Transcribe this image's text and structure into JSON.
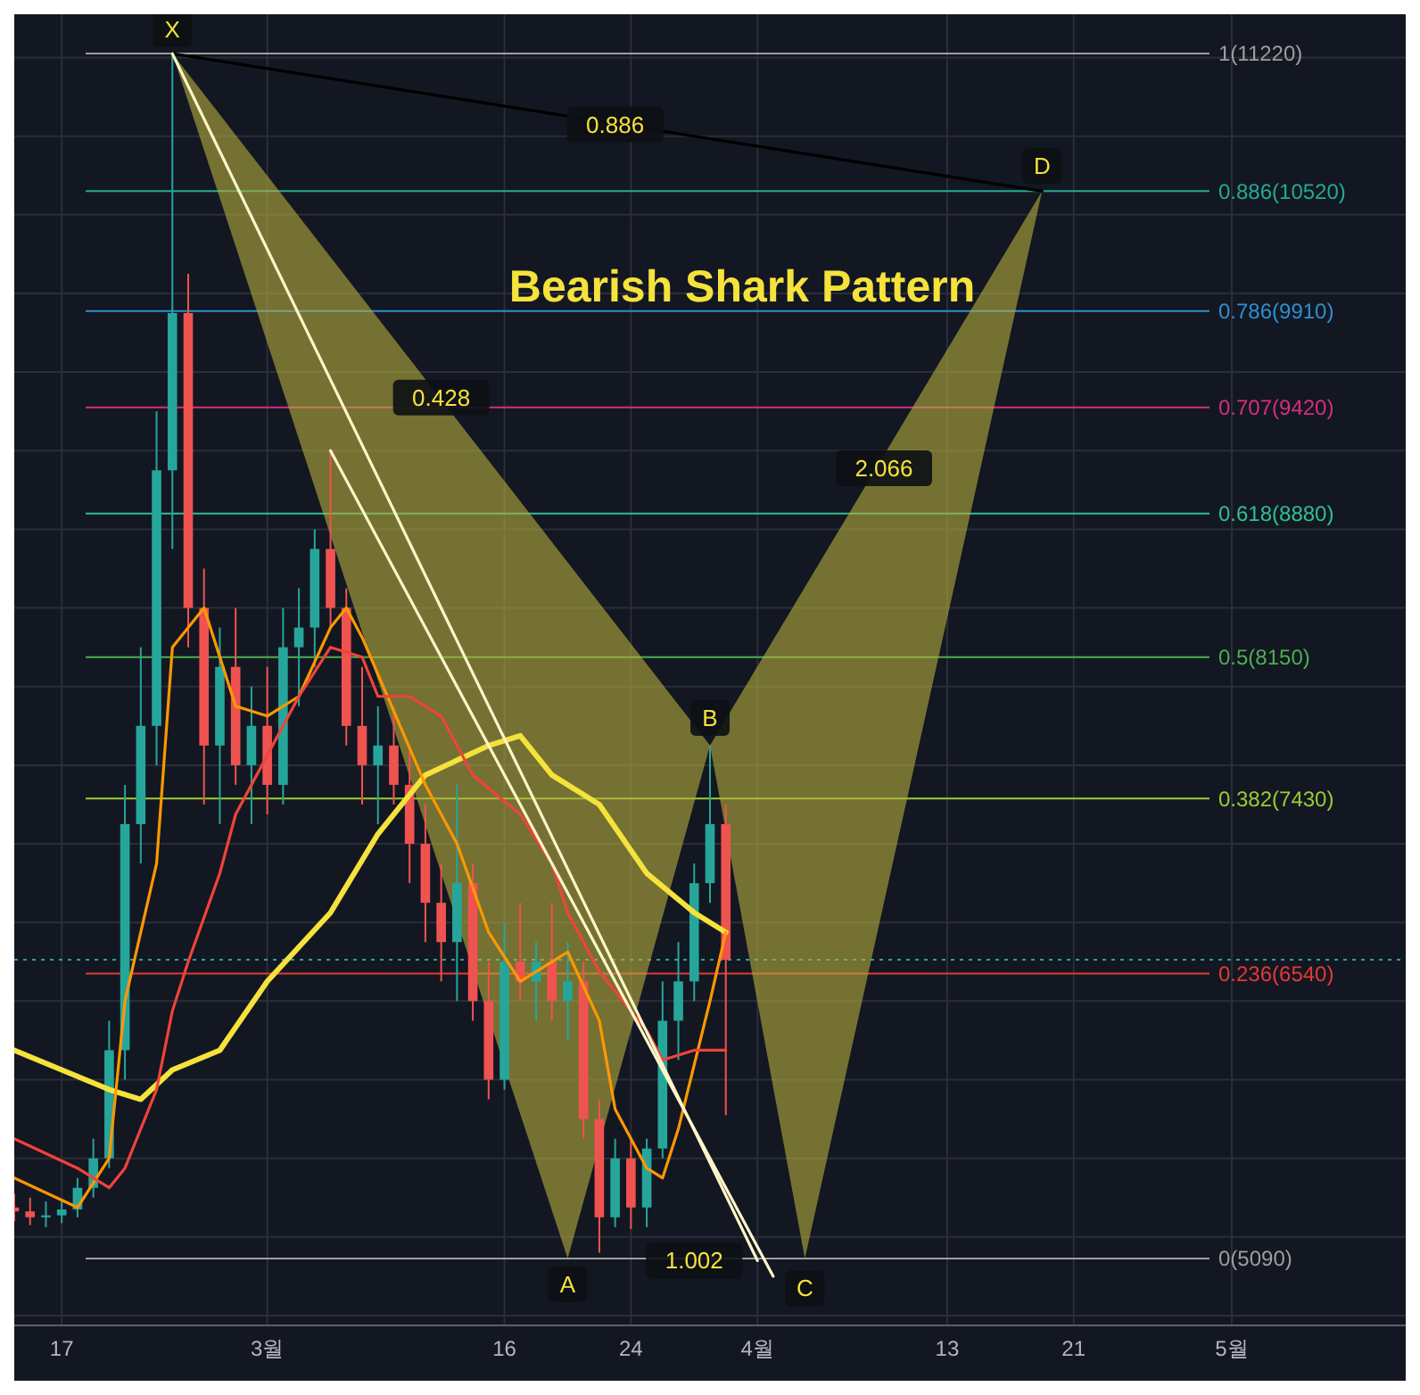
{
  "chart_data": {
    "type": "candlestick",
    "title": "Bearish Shark Pattern",
    "x": [
      "--02-14",
      "--02-15",
      "--02-16",
      "--02-17",
      "--02-18",
      "--02-19",
      "--02-20",
      "--02-21",
      "--02-22",
      "--02-23",
      "--02-24",
      "--02-25",
      "--02-26",
      "--02-27",
      "--02-28",
      "--02-29",
      "--03-01",
      "--03-02",
      "--03-03",
      "--03-04",
      "--03-05",
      "--03-06",
      "--03-07",
      "--03-08",
      "--03-09",
      "--03-10",
      "--03-11",
      "--03-12",
      "--03-13",
      "--03-14",
      "--03-15",
      "--03-16",
      "--03-17",
      "--03-18",
      "--03-19",
      "--03-20",
      "--03-21",
      "--03-22",
      "--03-23",
      "--03-24",
      "--03-25",
      "--03-26",
      "--03-27",
      "--03-28",
      "--03-29",
      "--03-30"
    ],
    "ohlc": [
      [
        5350,
        5420,
        5280,
        5330
      ],
      [
        5330,
        5400,
        5260,
        5300
      ],
      [
        5300,
        5380,
        5250,
        5310
      ],
      [
        5310,
        5390,
        5270,
        5340
      ],
      [
        5340,
        5500,
        5300,
        5450
      ],
      [
        5450,
        5700,
        5400,
        5600
      ],
      [
        5600,
        6300,
        5550,
        6150
      ],
      [
        6150,
        7500,
        6000,
        7300
      ],
      [
        7300,
        8200,
        7100,
        7800
      ],
      [
        7800,
        9400,
        7600,
        9100
      ],
      [
        9100,
        11220,
        8700,
        9900
      ],
      [
        9900,
        10100,
        8200,
        8400
      ],
      [
        8400,
        8600,
        7400,
        7700
      ],
      [
        7700,
        8300,
        7300,
        8100
      ],
      [
        8100,
        8400,
        7500,
        7600
      ],
      [
        7600,
        8000,
        7300,
        7800
      ],
      [
        7800,
        8100,
        7350,
        7500
      ],
      [
        7500,
        8400,
        7400,
        8200
      ],
      [
        8200,
        8500,
        7900,
        8300
      ],
      [
        8300,
        8800,
        8100,
        8700
      ],
      [
        8700,
        9200,
        8300,
        8400
      ],
      [
        8400,
        8500,
        7700,
        7800
      ],
      [
        7800,
        8100,
        7400,
        7600
      ],
      [
        7600,
        7900,
        7300,
        7700
      ],
      [
        7700,
        7900,
        7400,
        7500
      ],
      [
        7500,
        7700,
        7000,
        7200
      ],
      [
        7200,
        7400,
        6700,
        6900
      ],
      [
        6900,
        7100,
        6500,
        6700
      ],
      [
        6700,
        7500,
        6400,
        7000
      ],
      [
        7000,
        7100,
        6300,
        6400
      ],
      [
        6400,
        6600,
        5900,
        6000
      ],
      [
        6000,
        6800,
        5950,
        6600
      ],
      [
        6600,
        6900,
        6400,
        6500
      ],
      [
        6500,
        6700,
        6300,
        6600
      ],
      [
        6600,
        6900,
        6300,
        6400
      ],
      [
        6400,
        6700,
        6200,
        6500
      ],
      [
        6500,
        6600,
        5700,
        5800
      ],
      [
        5800,
        5900,
        5120,
        5300
      ],
      [
        5300,
        5700,
        5250,
        5600
      ],
      [
        5600,
        5700,
        5240,
        5350
      ],
      [
        5350,
        5700,
        5250,
        5650
      ],
      [
        5650,
        6500,
        5600,
        6300
      ],
      [
        6300,
        6700,
        6100,
        6500
      ],
      [
        6500,
        7100,
        6400,
        7000
      ],
      [
        7000,
        7700,
        6900,
        7300
      ],
      [
        7300,
        7400,
        5820,
        6610
      ]
    ],
    "series": [
      {
        "type": "line",
        "color": "#f5e23b",
        "x": [
          "--02-14",
          "--02-20",
          "--02-22",
          "--02-24",
          "--02-27",
          "--03-01",
          "--03-05",
          "--03-08",
          "--03-11",
          "--03-15",
          "--03-17",
          "--03-19",
          "--03-22",
          "--03-25",
          "--03-28",
          "--03-30"
        ],
        "values": [
          6150,
          5950,
          5900,
          6050,
          6150,
          6500,
          6850,
          7250,
          7550,
          7700,
          7750,
          7550,
          7400,
          7050,
          6850,
          6750
        ]
      },
      {
        "type": "line",
        "color": "#ff9800",
        "x": [
          "--02-14",
          "--02-18",
          "--02-20",
          "--02-21",
          "--02-23",
          "--02-24",
          "--02-26",
          "--02-28",
          "--03-01",
          "--03-03",
          "--03-05",
          "--03-06",
          "--03-07",
          "--03-11",
          "--03-13",
          "--03-15",
          "--03-17",
          "--03-19",
          "--03-20",
          "--03-22",
          "--03-23",
          "--03-25",
          "--03-26",
          "--03-27",
          "--03-29",
          "--03-30"
        ],
        "values": [
          5500,
          5350,
          5600,
          6400,
          7100,
          8200,
          8400,
          7900,
          7850,
          7950,
          8300,
          8400,
          8250,
          7500,
          7200,
          6750,
          6500,
          6600,
          6650,
          6300,
          5850,
          5550,
          5500,
          5750,
          6400,
          6750
        ]
      },
      {
        "type": "line",
        "color": "#f0433a",
        "x": [
          "--02-14",
          "--02-18",
          "--02-20",
          "--02-21",
          "--02-23",
          "--02-24",
          "--02-25",
          "--02-27",
          "--02-28",
          "--03-01",
          "--03-03",
          "--03-05",
          "--03-07",
          "--03-08",
          "--03-10",
          "--03-12",
          "--03-14",
          "--03-17",
          "--03-19",
          "--03-20",
          "--03-22",
          "--03-25",
          "--03-26",
          "--03-28",
          "--03-30"
        ],
        "values": [
          5700,
          5550,
          5450,
          5550,
          5950,
          6350,
          6600,
          7050,
          7350,
          7650,
          7950,
          8200,
          8150,
          7950,
          7950,
          7850,
          7550,
          7350,
          7100,
          6850,
          6550,
          6250,
          6100,
          6150,
          6150
        ]
      },
      {
        "type": "area",
        "color": "#b8ae3e",
        "x": [
          "--02-24",
          "--03-20",
          "--03-29"
        ],
        "values": [
          11220,
          5090,
          7700
        ]
      },
      {
        "type": "area",
        "color": "#b8ae3e",
        "x": [
          "--03-29",
          "--04-04",
          "--04-19"
        ],
        "values": [
          7700,
          5090,
          10520
        ]
      },
      {
        "type": "line",
        "color": "#000000",
        "x": [
          "--02-24",
          "--04-19"
        ],
        "values": [
          11220,
          10520
        ]
      },
      {
        "type": "line",
        "color": "#fff5c8",
        "x": [
          "--02-24",
          "--04-01"
        ],
        "values": [
          11220,
          5080
        ]
      },
      {
        "type": "line",
        "color": "#fff5c8",
        "x": [
          "--03-05",
          "--04-02"
        ],
        "values": [
          9200,
          5000
        ]
      }
    ],
    "ref_lines": [
      {
        "axis": "y",
        "value": 11220,
        "label": "1(11220)",
        "color": "#9e9e9e"
      },
      {
        "axis": "y",
        "value": 10520,
        "label": "0.886(10520)",
        "color": "#22ab94"
      },
      {
        "axis": "y",
        "value": 9910,
        "label": "0.786(9910)",
        "color": "#2f8fd0"
      },
      {
        "axis": "y",
        "value": 9420,
        "label": "0.707(9420)",
        "color": "#d42f7d"
      },
      {
        "axis": "y",
        "value": 8880,
        "label": "0.618(8880)",
        "color": "#2fbf8f"
      },
      {
        "axis": "y",
        "value": 8150,
        "label": "0.5(8150)",
        "color": "#4caf50"
      },
      {
        "axis": "y",
        "value": 7430,
        "label": "0.382(7430)",
        "color": "#9acd32"
      },
      {
        "axis": "y",
        "value": 6610,
        "label": null,
        "color": "#26a69a",
        "line_style": "dotted"
      },
      {
        "axis": "y",
        "value": 6540,
        "label": "0.236(6540)",
        "color": "#e53935"
      },
      {
        "axis": "y",
        "value": 5090,
        "label": "0(5090)",
        "color": "#9e9e9e"
      }
    ],
    "annotations": [
      {
        "text": "X",
        "x": "--02-24",
        "y": 11345
      },
      {
        "text": "A",
        "x": "--03-20",
        "y": 4960
      },
      {
        "text": "B",
        "x": "--03-29",
        "y": 7840
      },
      {
        "text": "C",
        "x": "--04-04",
        "y": 4940
      },
      {
        "text": "D",
        "x": "--04-19",
        "y": 10650
      },
      {
        "text": "0.886",
        "x": "--03-23",
        "y": 10860
      },
      {
        "text": "0.428",
        "x": "--03-12",
        "y": 9470
      },
      {
        "text": "2.066",
        "x": "--04-09",
        "y": 9110
      },
      {
        "text": "1.002",
        "x": "--03-28",
        "y": 5080
      }
    ],
    "xlim": [
      "--02-14",
      "--05-12"
    ],
    "xticks": [
      {
        "value": "--02-17",
        "label": "17"
      },
      {
        "value": "--03-01",
        "label": "3월"
      },
      {
        "value": "--03-16",
        "label": "16"
      },
      {
        "value": "--03-24",
        "label": "24"
      },
      {
        "value": "--04-01",
        "label": "4월"
      },
      {
        "value": "--04-13",
        "label": "13"
      },
      {
        "value": "--04-21",
        "label": "21"
      },
      {
        "value": "--05-01",
        "label": "5월"
      }
    ],
    "ylim": [
      4750,
      11420
    ],
    "yticks": [
      {
        "value": 4800,
        "label": null
      },
      {
        "value": 5200,
        "label": null
      },
      {
        "value": 5600,
        "label": null
      },
      {
        "value": 6000,
        "label": null
      },
      {
        "value": 6400,
        "label": null
      },
      {
        "value": 6800,
        "label": null
      },
      {
        "value": 7200,
        "label": null
      },
      {
        "value": 7600,
        "label": null
      },
      {
        "value": 8000,
        "label": null
      },
      {
        "value": 8400,
        "label": null
      },
      {
        "value": 8800,
        "label": null
      },
      {
        "value": 9200,
        "label": null
      },
      {
        "value": 9600,
        "label": null
      },
      {
        "value": 10000,
        "label": null
      },
      {
        "value": 10400,
        "label": null
      },
      {
        "value": 10800,
        "label": null
      },
      {
        "value": 11200,
        "label": null
      }
    ],
    "tick_labels": "x",
    "grid": true
  }
}
